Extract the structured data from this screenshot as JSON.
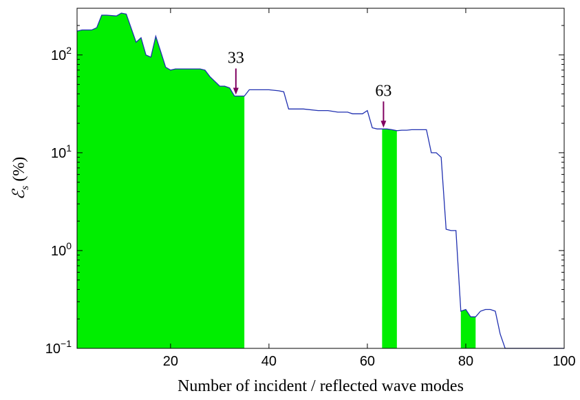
{
  "chart_data": {
    "type": "area",
    "xlabel": "Number of incident / reflected wave modes",
    "ylabel": "ℰ",
    "ylabel_sub": "s",
    "ylabel_unit": "(%)",
    "y_scale": "log",
    "xlim": [
      1,
      100
    ],
    "ylim": [
      0.1,
      300
    ],
    "x_ticks": [
      20,
      40,
      60,
      80,
      100
    ],
    "y_ticks": [
      {
        "value": 0.1,
        "base": "10",
        "exp": "−1"
      },
      {
        "value": 1,
        "base": "10",
        "exp": "0"
      },
      {
        "value": 10,
        "base": "10",
        "exp": "1"
      },
      {
        "value": 100,
        "base": "10",
        "exp": "2"
      }
    ],
    "grid": false,
    "line_color": "#1f2fb0",
    "fill_color": "#00ee00",
    "arrow_color": "#800060",
    "series": [
      {
        "x": [
          1,
          2,
          4,
          5,
          6,
          7,
          9,
          10,
          11,
          13,
          14,
          15,
          16,
          17,
          18,
          19,
          20,
          21,
          23,
          24,
          26,
          27,
          28,
          30,
          31,
          32,
          33,
          34,
          35,
          36,
          38,
          40,
          42,
          43,
          44,
          45,
          47,
          50,
          52,
          54,
          56,
          57,
          59,
          60,
          61,
          62,
          63,
          64,
          65,
          66,
          67,
          68,
          69,
          70,
          71,
          72,
          73,
          74,
          75,
          76,
          77,
          78,
          79,
          80,
          81,
          82,
          83,
          84,
          85,
          86,
          87,
          88,
          89,
          90,
          91,
          92,
          93,
          94,
          95,
          96,
          97,
          98,
          99,
          100
        ],
        "y": [
          175,
          180,
          180,
          190,
          255,
          255,
          250,
          268,
          262,
          135,
          150,
          100,
          95,
          155,
          108,
          75,
          70,
          72,
          72,
          72,
          72,
          70,
          60,
          48,
          48,
          46,
          38,
          38,
          38,
          44,
          44,
          44,
          43,
          42,
          28,
          28,
          28,
          27,
          27,
          26,
          26,
          25,
          25,
          27,
          18,
          17.5,
          17.5,
          17.5,
          17.2,
          16.8,
          17,
          17,
          17.2,
          17.2,
          17.2,
          17.2,
          10,
          10,
          9,
          1.65,
          1.6,
          1.6,
          0.24,
          0.25,
          0.21,
          0.21,
          0.24,
          0.25,
          0.25,
          0.24,
          0.14,
          0.1,
          0.1,
          0.1,
          0.1,
          0.1,
          0.1,
          0.1,
          0.1,
          0.1,
          0.1,
          0.1,
          0.1,
          0.1
        ]
      }
    ],
    "fill_ranges": [
      [
        1,
        35
      ],
      [
        63,
        66
      ],
      [
        79,
        82
      ]
    ],
    "annotations": [
      {
        "text": "33",
        "x": 33
      },
      {
        "text": "63",
        "x": 63
      }
    ]
  }
}
